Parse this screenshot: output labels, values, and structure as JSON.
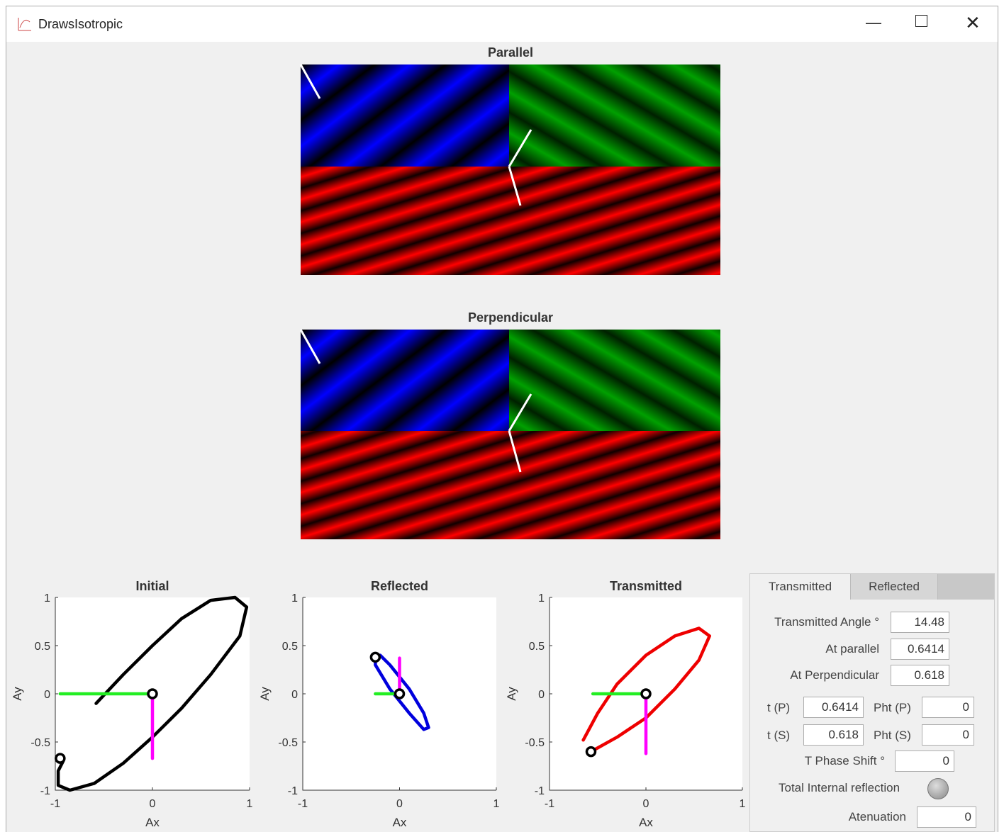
{
  "window": {
    "title": "DrawsIsotropic"
  },
  "images": [
    {
      "title": "Parallel"
    },
    {
      "title": "Perpendicular"
    }
  ],
  "chart_data": [
    {
      "type": "line",
      "title": "Initial",
      "x_label": "Ax",
      "y_label": "Ay",
      "xlim": [
        -1,
        1
      ],
      "ylim": [
        -1,
        1
      ],
      "xticks": [
        -1,
        0,
        1
      ],
      "yticks": [
        -1,
        -0.5,
        0,
        0.5,
        1
      ],
      "series": [
        {
          "style": "line",
          "color": "#000000",
          "x": [
            -0.58,
            -0.3,
            0,
            0.3,
            0.6,
            0.85,
            0.97,
            0.9,
            0.6,
            0.3,
            0,
            -0.3,
            -0.6,
            -0.85,
            -0.97,
            -0.97,
            -0.92
          ],
          "values": [
            -0.1,
            0.2,
            0.5,
            0.78,
            0.97,
            1,
            0.9,
            0.6,
            0.2,
            -0.15,
            -0.45,
            -0.72,
            -0.93,
            -1,
            -0.95,
            -0.8,
            -0.7
          ]
        },
        {
          "style": "line",
          "color": "#22ee22",
          "x": [
            -0.95,
            0
          ],
          "values": [
            0,
            0
          ]
        },
        {
          "style": "line",
          "color": "#ff00ff",
          "x": [
            0,
            0
          ],
          "values": [
            0,
            -0.67
          ]
        },
        {
          "style": "marker",
          "color": "#000000",
          "x": [
            0,
            -0.95
          ],
          "values": [
            0,
            -0.67
          ]
        }
      ]
    },
    {
      "type": "line",
      "title": "Reflected",
      "x_label": "Ax",
      "y_label": "Ay",
      "xlim": [
        -1,
        1
      ],
      "ylim": [
        -1,
        1
      ],
      "xticks": [
        -1,
        0,
        1
      ],
      "yticks": [
        -1,
        -0.5,
        0,
        0.5,
        1
      ],
      "series": [
        {
          "style": "line",
          "color": "#0000dd",
          "x": [
            -0.25,
            -0.2,
            -0.1,
            0.1,
            0.25,
            0.3,
            0.25,
            0.1,
            -0.1,
            -0.25,
            -0.25
          ],
          "values": [
            0.38,
            0.4,
            0.3,
            0.05,
            -0.2,
            -0.35,
            -0.37,
            -0.2,
            0.05,
            0.3,
            0.38
          ]
        },
        {
          "style": "line",
          "color": "#22ee22",
          "x": [
            -0.25,
            0
          ],
          "values": [
            0,
            0
          ]
        },
        {
          "style": "line",
          "color": "#ff00ff",
          "x": [
            0,
            0
          ],
          "values": [
            0,
            0.37
          ]
        },
        {
          "style": "marker",
          "color": "#000000",
          "x": [
            0,
            -0.25
          ],
          "values": [
            0,
            0.38
          ]
        }
      ]
    },
    {
      "type": "line",
      "title": "Transmitted",
      "x_label": "Ax",
      "y_label": "Ay",
      "xlim": [
        -1,
        1
      ],
      "ylim": [
        -1,
        1
      ],
      "xticks": [
        -1,
        0,
        1
      ],
      "yticks": [
        -1,
        -0.5,
        0,
        0.5,
        1
      ],
      "series": [
        {
          "style": "line",
          "color": "#ee0000",
          "x": [
            -0.65,
            -0.5,
            -0.3,
            0,
            0.3,
            0.55,
            0.66,
            0.55,
            0.3,
            0,
            -0.3,
            -0.57
          ],
          "values": [
            -0.48,
            -0.2,
            0.1,
            0.4,
            0.6,
            0.68,
            0.6,
            0.35,
            0.05,
            -0.25,
            -0.45,
            -0.6
          ]
        },
        {
          "style": "line",
          "color": "#22ee22",
          "x": [
            -0.55,
            0
          ],
          "values": [
            0,
            0
          ]
        },
        {
          "style": "line",
          "color": "#ff00ff",
          "x": [
            0,
            0
          ],
          "values": [
            0,
            -0.62
          ]
        },
        {
          "style": "marker",
          "color": "#000000",
          "x": [
            0,
            -0.57
          ],
          "values": [
            0,
            -0.6
          ]
        }
      ]
    }
  ],
  "panel": {
    "tabs": [
      "Transmitted",
      "Reflected"
    ],
    "fields": [
      {
        "label": "Transmitted Angle °",
        "value": "14.48"
      },
      {
        "label": "At parallel",
        "value": "0.6414"
      },
      {
        "label": "At Perpendicular",
        "value": "0.618"
      },
      {
        "label": "t (P)",
        "value": "0.6414"
      },
      {
        "label": "Pht (P)",
        "value": "0"
      },
      {
        "label": "t (S)",
        "value": "0.618"
      },
      {
        "label": "Pht (S)",
        "value": "0"
      },
      {
        "label": "T Phase Shift °",
        "value": "0"
      },
      {
        "label": "Atenuation",
        "value": "0"
      }
    ],
    "toggle_label": "Total Internal reflection"
  }
}
